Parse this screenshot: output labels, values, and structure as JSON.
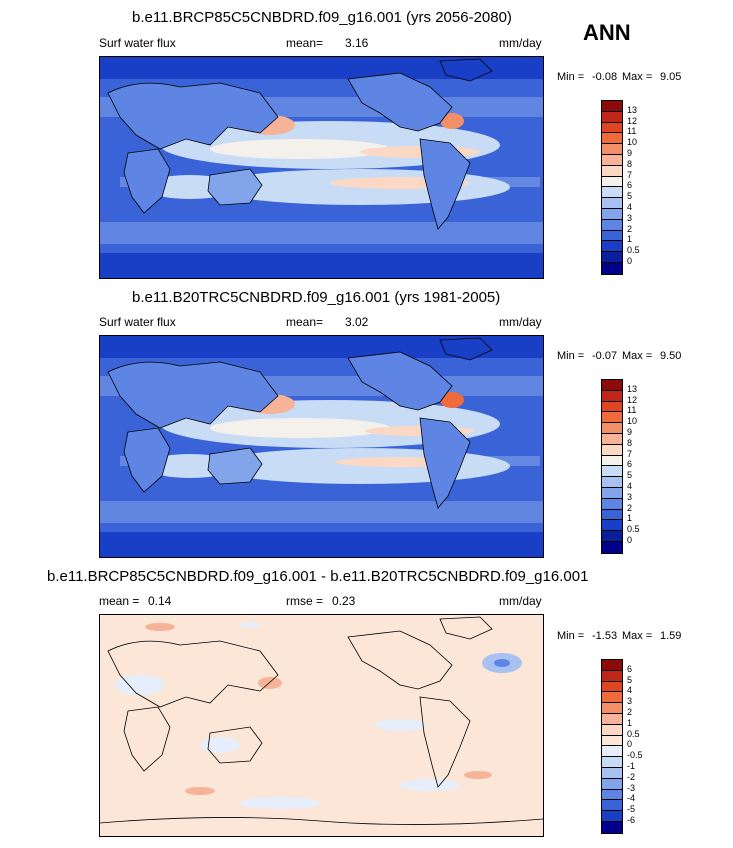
{
  "season": "ANN",
  "panels": [
    {
      "title": "b.e11.BRCP85C5CNBDRD.f09_g16.001 (yrs 2056-2080)",
      "left_label": "Surf water flux",
      "center_label": "mean=",
      "center_value": "3.16",
      "right_label": "mm/day",
      "min_label": "Min =",
      "min_value": "-0.08",
      "max_label": "Max =",
      "max_value": "9.05",
      "colorbar": {
        "ticks": [
          "13",
          "12",
          "11",
          "10",
          "9",
          "8",
          "7",
          "6",
          "5",
          "4",
          "3",
          "2",
          "1",
          "0.5",
          "0"
        ],
        "colors": [
          "#8c0a0a",
          "#c0271a",
          "#de4622",
          "#f06a3c",
          "#f38f68",
          "#f6b397",
          "#fbd8c4",
          "#f4f0ec",
          "#c8dcf6",
          "#a7c2f0",
          "#82a4ea",
          "#5f85e4",
          "#3b63d8",
          "#1a3fc7",
          "#0a1f9e",
          "#00008a"
        ]
      }
    },
    {
      "title": "b.e11.B20TRC5CNBDRD.f09_g16.001 (yrs 1981-2005)",
      "left_label": "Surf water flux",
      "center_label": "mean=",
      "center_value": "3.02",
      "right_label": "mm/day",
      "min_label": "Min =",
      "min_value": "-0.07",
      "max_label": "Max =",
      "max_value": "9.50",
      "colorbar": {
        "ticks": [
          "13",
          "12",
          "11",
          "10",
          "9",
          "8",
          "7",
          "6",
          "5",
          "4",
          "3",
          "2",
          "1",
          "0.5",
          "0"
        ],
        "colors": [
          "#8c0a0a",
          "#c0271a",
          "#de4622",
          "#f06a3c",
          "#f38f68",
          "#f6b397",
          "#fbd8c4",
          "#f4f0ec",
          "#c8dcf6",
          "#a7c2f0",
          "#82a4ea",
          "#5f85e4",
          "#3b63d8",
          "#1a3fc7",
          "#0a1f9e",
          "#00008a"
        ]
      }
    },
    {
      "title": "b.e11.BRCP85C5CNBDRD.f09_g16.001 - b.e11.B20TRC5CNBDRD.f09_g16.001",
      "left_label": "mean =",
      "left_value": "0.14",
      "center_label": "rmse =",
      "center_value": "0.23",
      "right_label": "mm/day",
      "min_label": "Min =",
      "min_value": "-1.53",
      "max_label": "Max =",
      "max_value": "1.59",
      "colorbar": {
        "ticks": [
          "6",
          "5",
          "4",
          "3",
          "2",
          "1",
          "0.5",
          "0",
          "-0.5",
          "-1",
          "-2",
          "-3",
          "-4",
          "-5",
          "-6"
        ],
        "colors": [
          "#8c0a0a",
          "#c0271a",
          "#de4622",
          "#f06a3c",
          "#f38f68",
          "#f6b397",
          "#fbd8c4",
          "#fbe6d8",
          "#e6eefb",
          "#c8dcf6",
          "#a7c2f0",
          "#82a4ea",
          "#5f85e4",
          "#3b63d8",
          "#1a3fc7",
          "#00008a"
        ]
      }
    }
  ]
}
